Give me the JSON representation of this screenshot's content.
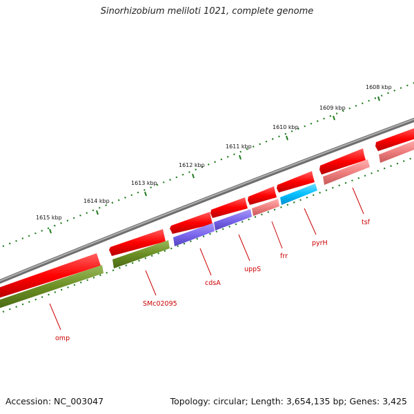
{
  "title": "Sinorhizobium meliloti 1021, complete genome",
  "footer": {
    "accession": "Accession: NC_003047",
    "topology": "Topology: circular; Length: 3,654,135 bp; Genes: 3,425"
  },
  "ticks": [
    {
      "kbp": 1615,
      "label": "1615 kbp"
    },
    {
      "kbp": 1614,
      "label": "1614 kbp"
    },
    {
      "kbp": 1613,
      "label": "1613 kbp"
    },
    {
      "kbp": 1612,
      "label": "1612 kbp"
    },
    {
      "kbp": 1611,
      "label": "1611 kbp"
    },
    {
      "kbp": 1610,
      "label": "1610 kbp"
    },
    {
      "kbp": 1609,
      "label": "1609 kbp"
    },
    {
      "kbp": 1608,
      "label": "1608 kbp"
    }
  ],
  "genes": [
    {
      "name": "omp",
      "color": "#e00000"
    },
    {
      "name": "SMc02095",
      "color": "#e00000"
    },
    {
      "name": "cdsA",
      "color": "#e00000"
    },
    {
      "name": "uppS",
      "color": "#e00000"
    },
    {
      "name": "frr",
      "color": "#e00000"
    },
    {
      "name": "pyrH",
      "color": "#e00000"
    },
    {
      "name": "tsf",
      "color": "#e00000"
    }
  ],
  "colors": {
    "backbone": "#808080",
    "cds_forward": "#ff0000",
    "cds_lane2_green": "#6b8e23",
    "cds_lane2_purple": "#7b68ee",
    "cds_lane2_pink": "#f08080",
    "cds_lane2_cyan": "#00bfff",
    "tick": "#1e7b1e",
    "label": "#cc0000"
  }
}
